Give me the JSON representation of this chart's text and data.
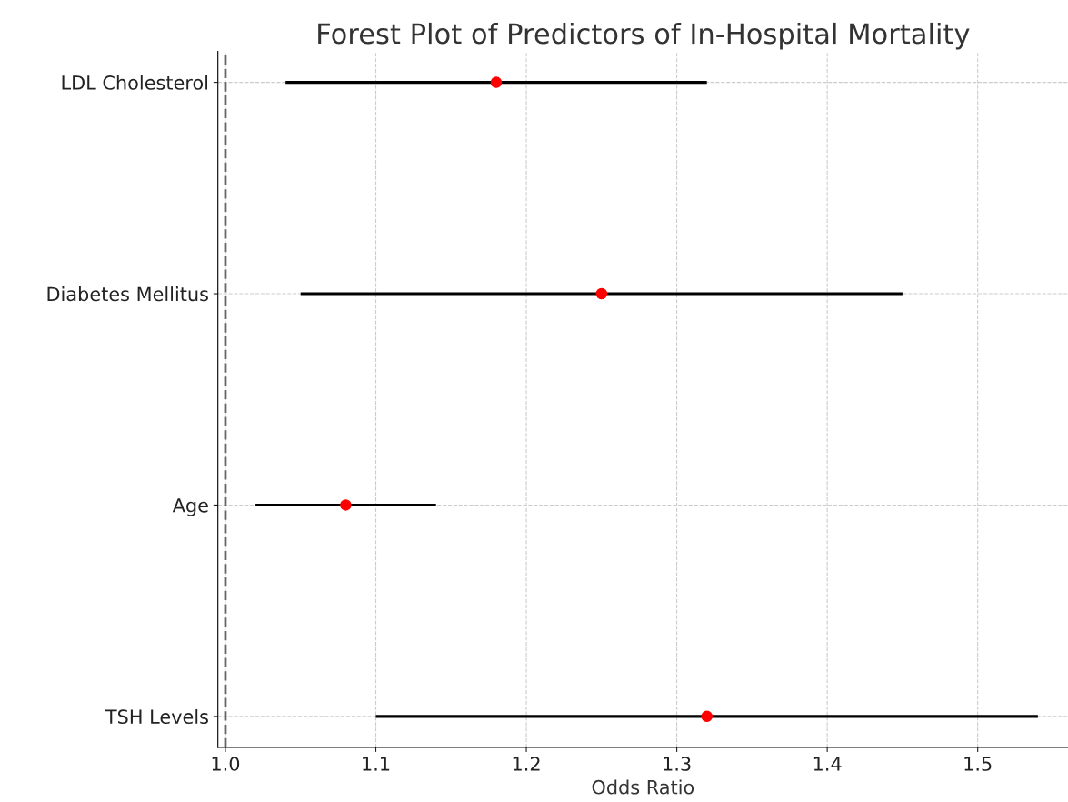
{
  "chart_data": {
    "type": "scatter",
    "title": "Forest Plot of Predictors of In-Hospital Mortality",
    "xlabel": "Odds Ratio",
    "orientation": "horizontal",
    "categories": [
      "LDL Cholesterol",
      "Diabetes Mellitus",
      "Age",
      "TSH Levels"
    ],
    "color": "#ff0000",
    "values": [
      1.18,
      1.25,
      1.08,
      1.32
    ],
    "errors": [
      [
        1.04,
        1.32
      ],
      [
        1.05,
        1.45
      ],
      [
        1.02,
        1.14
      ],
      [
        1.1,
        1.54
      ]
    ],
    "xlim": [
      0.995,
      1.56
    ],
    "xticks": [
      {
        "value": 1.0,
        "label": "1.0"
      },
      1.1,
      1.2,
      1.3,
      1.4,
      1.5
    ],
    "ref_lines": [
      {
        "axis": "x",
        "value": 1.0,
        "color": "#666666",
        "line_style": "dashed"
      }
    ],
    "grid": true,
    "marker": "circle",
    "legend": false
  }
}
